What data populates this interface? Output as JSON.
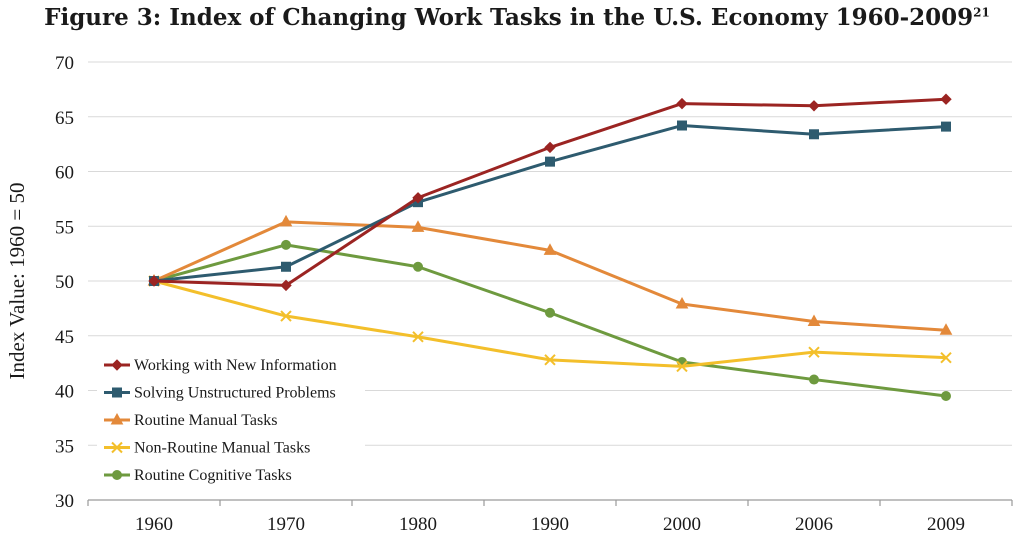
{
  "chart_data": {
    "type": "line",
    "title": "Figure 3: Index of Changing Work Tasks in the U.S. Economy 1960-2009",
    "title_superscript": "21",
    "xlabel": "",
    "ylabel": "Index Value: 1960 = 50",
    "categories": [
      "1960",
      "1970",
      "1980",
      "1990",
      "2000",
      "2006",
      "2009"
    ],
    "ylim": [
      30,
      70
    ],
    "yticks": [
      30,
      35,
      40,
      45,
      50,
      55,
      60,
      65,
      70
    ],
    "grid": true,
    "legend_position": "bottom-left",
    "series": [
      {
        "name": "Working with New Information",
        "color": "#9b2422",
        "marker": "diamond",
        "values": [
          50.0,
          49.6,
          57.6,
          62.2,
          66.2,
          66.0,
          66.6
        ]
      },
      {
        "name": "Solving Unstructured Problems",
        "color": "#2e5b6f",
        "marker": "square",
        "values": [
          50.0,
          51.3,
          57.2,
          60.9,
          64.2,
          63.4,
          64.1
        ]
      },
      {
        "name": "Routine Manual Tasks",
        "color": "#e3893a",
        "marker": "triangle",
        "values": [
          50.0,
          55.4,
          54.9,
          52.8,
          47.9,
          46.3,
          45.5
        ]
      },
      {
        "name": "Non-Routine Manual Tasks",
        "color": "#f3bf2b",
        "marker": "x",
        "values": [
          50.0,
          46.8,
          44.9,
          42.8,
          42.2,
          43.5,
          43.0
        ]
      },
      {
        "name": "Routine Cognitive Tasks",
        "color": "#6e9a3f",
        "marker": "circle",
        "values": [
          50.0,
          53.3,
          51.3,
          47.1,
          42.6,
          41.0,
          39.5
        ]
      }
    ]
  }
}
